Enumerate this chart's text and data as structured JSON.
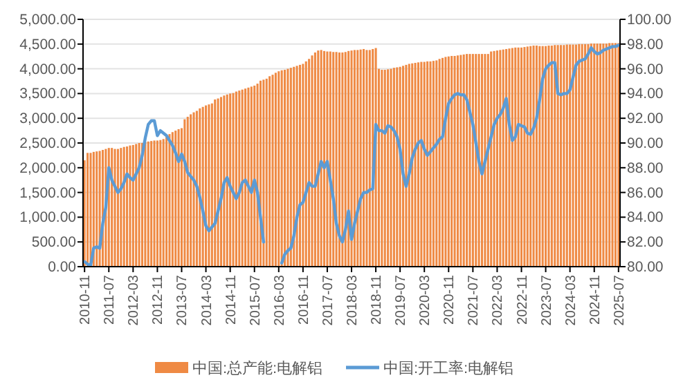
{
  "chart_data": {
    "type": "bar",
    "categories": [
      "2010-11",
      null,
      null,
      null,
      null,
      null,
      null,
      null,
      "2011-07",
      null,
      null,
      null,
      null,
      null,
      null,
      null,
      "2012-03",
      null,
      null,
      null,
      null,
      null,
      null,
      null,
      "2012-11",
      null,
      null,
      null,
      null,
      null,
      null,
      null,
      "2013-07",
      null,
      null,
      null,
      null,
      null,
      null,
      null,
      "2014-03",
      null,
      null,
      null,
      null,
      null,
      null,
      null,
      "2014-11",
      null,
      null,
      null,
      null,
      null,
      null,
      null,
      "2015-07",
      null,
      null,
      null,
      null,
      null,
      null,
      null,
      "2016-03",
      null,
      null,
      null,
      null,
      null,
      null,
      null,
      "2016-11",
      null,
      null,
      null,
      null,
      null,
      null,
      null,
      "2017-07",
      null,
      null,
      null,
      null,
      null,
      null,
      null,
      "2018-03",
      null,
      null,
      null,
      null,
      null,
      null,
      null,
      "2018-11",
      null,
      null,
      null,
      null,
      null,
      null,
      null,
      "2019-07",
      null,
      null,
      null,
      null,
      null,
      null,
      null,
      "2020-03",
      null,
      null,
      null,
      null,
      null,
      null,
      null,
      "2020-11",
      null,
      null,
      null,
      null,
      null,
      null,
      null,
      "2021-07",
      null,
      null,
      null,
      null,
      null,
      null,
      null,
      "2022-03",
      null,
      null,
      null,
      null,
      null,
      null,
      null,
      "2022-11",
      null,
      null,
      null,
      null,
      null,
      null,
      null,
      "2023-07",
      null,
      null,
      null,
      null,
      null,
      null,
      null,
      "2024-03",
      null,
      null,
      null,
      null,
      null,
      null,
      null,
      "2024-11",
      null,
      null,
      null,
      null,
      null,
      null,
      null,
      "2025-07"
    ],
    "series": [
      {
        "name": "中国:总产能:电解铝",
        "color": "#ef8a44",
        "values": [
          2150,
          2300,
          2300,
          2320,
          2330,
          2340,
          2360,
          2380,
          2400,
          2400,
          2380,
          2380,
          2400,
          2420,
          2430,
          2450,
          2460,
          2480,
          2500,
          2500,
          2520,
          2530,
          2540,
          2550,
          2550,
          2560,
          2580,
          2620,
          2680,
          2720,
          2750,
          2780,
          2800,
          2980,
          3030,
          3080,
          3120,
          3150,
          3200,
          3230,
          3260,
          3280,
          3300,
          3380,
          3400,
          3430,
          3460,
          3480,
          3500,
          3510,
          3540,
          3560,
          3580,
          3600,
          3620,
          3640,
          3660,
          3700,
          3760,
          3780,
          3800,
          3850,
          3880,
          3920,
          3950,
          3970,
          3980,
          4000,
          4020,
          4040,
          4060,
          4080,
          4100,
          4150,
          4200,
          4270,
          4330,
          4370,
          4380,
          4360,
          4350,
          4350,
          4340,
          4340,
          4330,
          4330,
          4340,
          4360,
          4370,
          4380,
          4380,
          4390,
          4400,
          4380,
          4380,
          4400,
          4420,
          4000,
          3980,
          3980,
          3990,
          4000,
          4020,
          4030,
          4040,
          4060,
          4080,
          4100,
          4110,
          4120,
          4130,
          4140,
          4140,
          4150,
          4150,
          4160,
          4170,
          4200,
          4220,
          4240,
          4250,
          4260,
          4260,
          4270,
          4280,
          4290,
          4300,
          4300,
          4300,
          4300,
          4300,
          4300,
          4300,
          4300,
          4350,
          4360,
          4370,
          4380,
          4390,
          4400,
          4410,
          4420,
          4430,
          4430,
          4430,
          4440,
          4450,
          4460,
          4470,
          4470,
          4460,
          4460,
          4460,
          4470,
          4470,
          4480,
          4480,
          4480,
          4480,
          4490,
          4490,
          4490,
          4490,
          4500,
          4500,
          4500,
          4500,
          4510,
          4510,
          4510,
          4510,
          4510,
          4510,
          4520,
          4520,
          4520,
          4520
        ]
      },
      {
        "name": "中国:开工率:电解铝",
        "type": "line",
        "axis": "y2",
        "color": "#5b9bd5",
        "line_style": "solid",
        "values": [
          80.4,
          80.2,
          80.1,
          81.5,
          81.6,
          81.5,
          83.5,
          84.8,
          88.0,
          87.0,
          86.5,
          86.0,
          86.3,
          86.8,
          87.5,
          87.2,
          87.0,
          87.5,
          88.0,
          89.0,
          90.4,
          91.5,
          91.8,
          91.8,
          90.6,
          91.0,
          90.8,
          90.6,
          90.2,
          89.8,
          89.2,
          88.5,
          89.1,
          88.5,
          87.6,
          87.3,
          87.0,
          86.5,
          85.6,
          84.5,
          83.3,
          82.9,
          83.2,
          83.5,
          84.5,
          85.5,
          86.8,
          87.2,
          86.5,
          86.0,
          85.5,
          86.0,
          86.8,
          87.0,
          86.5,
          86.0,
          87.0,
          86.0,
          84.0,
          82.0,
          null,
          null,
          null,
          null,
          null,
          80.3,
          81.0,
          81.3,
          81.5,
          82.5,
          84.0,
          85.0,
          85.2,
          86.0,
          86.8,
          86.5,
          86.5,
          87.5,
          88.5,
          88.0,
          88.5,
          87.0,
          85.5,
          83.5,
          82.5,
          82.0,
          83.0,
          84.5,
          82.2,
          83.5,
          84.5,
          85.5,
          86.0,
          86.0,
          86.2,
          86.3,
          91.5,
          91.0,
          91.0,
          90.8,
          91.4,
          91.3,
          91.0,
          90.5,
          89.5,
          87.5,
          86.5,
          87.5,
          88.8,
          89.5,
          90.0,
          90.2,
          89.5,
          89.0,
          89.3,
          89.6,
          89.9,
          90.3,
          90.5,
          92.0,
          93.2,
          93.6,
          93.9,
          94.0,
          93.9,
          93.9,
          93.5,
          92.5,
          91.5,
          90.0,
          88.5,
          87.5,
          88.5,
          89.5,
          90.5,
          91.5,
          92.0,
          92.3,
          92.8,
          93.6,
          91.5,
          90.2,
          90.5,
          91.5,
          91.4,
          91.3,
          90.8,
          90.7,
          91.2,
          92.0,
          93.5,
          95.2,
          96.0,
          96.3,
          96.5,
          96.5,
          94.0,
          93.9,
          94.0,
          94.0,
          94.3,
          95.3,
          96.3,
          96.6,
          96.7,
          96.8,
          97.2,
          97.7,
          97.4,
          97.2,
          97.3,
          97.5,
          97.6,
          97.7,
          97.8,
          97.8,
          97.9
        ]
      }
    ],
    "ylim": [
      0,
      5000
    ],
    "yticks": [
      {
        "value": 0,
        "label": "0.00"
      },
      {
        "value": 500,
        "label": "500.00"
      },
      {
        "value": 1000,
        "label": "1,000.00"
      },
      {
        "value": 1500,
        "label": "1,500.00"
      },
      {
        "value": 2000,
        "label": "2,000.00"
      },
      {
        "value": 2500,
        "label": "2,500.00"
      },
      {
        "value": 3000,
        "label": "3,000.00"
      },
      {
        "value": 3500,
        "label": "3,500.00"
      },
      {
        "value": 4000,
        "label": "4,000.00"
      },
      {
        "value": 4500,
        "label": "4,500.00"
      },
      {
        "value": 5000,
        "label": "5,000.00"
      }
    ],
    "y2lim": [
      80,
      100
    ],
    "y2ticks": [
      {
        "value": 80,
        "label": "80.00"
      },
      {
        "value": 82,
        "label": "82.00"
      },
      {
        "value": 84,
        "label": "84.00"
      },
      {
        "value": 86,
        "label": "86.00"
      },
      {
        "value": 88,
        "label": "88.00"
      },
      {
        "value": 90,
        "label": "90.00"
      },
      {
        "value": 92,
        "label": "92.00"
      },
      {
        "value": 94,
        "label": "94.00"
      },
      {
        "value": 96,
        "label": "96.00"
      },
      {
        "value": 98,
        "label": "98.00"
      },
      {
        "value": 100,
        "label": "100.00"
      }
    ],
    "grid": "y",
    "legend": "bottom"
  }
}
